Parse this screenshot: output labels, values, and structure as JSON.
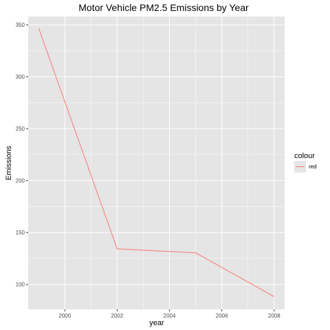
{
  "chart_data": {
    "type": "line",
    "title": "Motor Vehicle PM2.5 Emissions by Year",
    "xlabel": "year",
    "ylabel": "Emissions",
    "x": [
      1999,
      2002,
      2005,
      2008
    ],
    "series": [
      {
        "name": "red",
        "values": [
          346.82,
          134.31,
          130.43,
          88.28
        ]
      }
    ],
    "xlim": [
      1998.6,
      2008.4
    ],
    "ylim": [
      76,
      358
    ],
    "xticks": [
      2000,
      2002,
      2004,
      2006,
      2008
    ],
    "yticks": [
      100,
      150,
      200,
      250,
      300,
      350
    ],
    "grid": true,
    "legend": {
      "title": "colour",
      "placement": "right",
      "entries": [
        "red"
      ]
    },
    "colors": {
      "panel": "#e5e5e5",
      "grid": "#ffffff",
      "line": "#f8766d"
    }
  }
}
